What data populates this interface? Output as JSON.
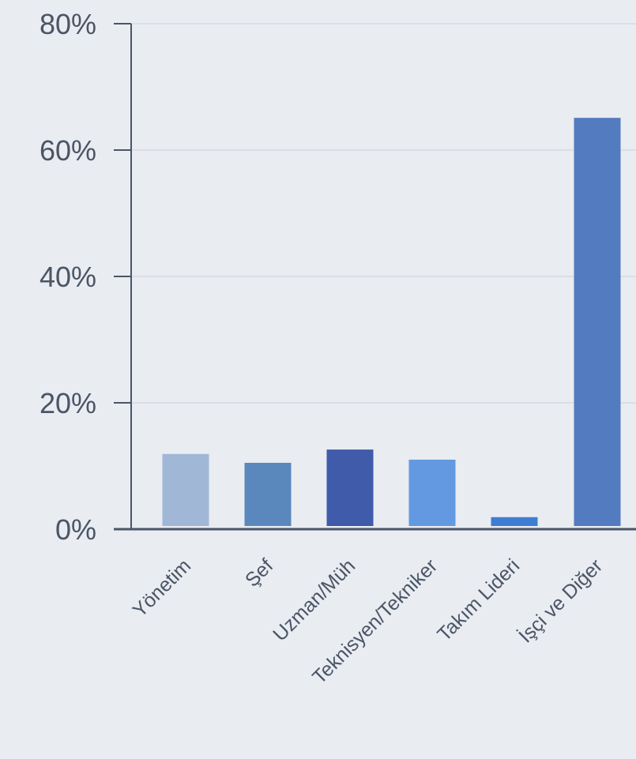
{
  "chart_data": {
    "type": "bar",
    "categories": [
      "Yönetim",
      "Şef",
      "Uzman/Müh",
      "Teknisyen/Tekniker",
      "Takım Lideri",
      "İşçi ve Diğer"
    ],
    "values": [
      11.9,
      10.5,
      12.6,
      11.0,
      1.9,
      65.1
    ],
    "colors": [
      "#a0b8d6",
      "#5a88bd",
      "#3f5ba9",
      "#6399e1",
      "#3f7dd3",
      "#537bbf"
    ],
    "yticks": [
      "0%",
      "20%",
      "40%",
      "60%",
      "80%"
    ],
    "ylim": [
      0,
      80
    ],
    "ytick_values": [
      0,
      20,
      40,
      60,
      80
    ],
    "grid": true,
    "title": "",
    "xlabel": "",
    "ylabel": ""
  },
  "style": {
    "background": "#e9ecf1",
    "axis_color": "#4a5566",
    "grid_color": "#d5dae2"
  }
}
